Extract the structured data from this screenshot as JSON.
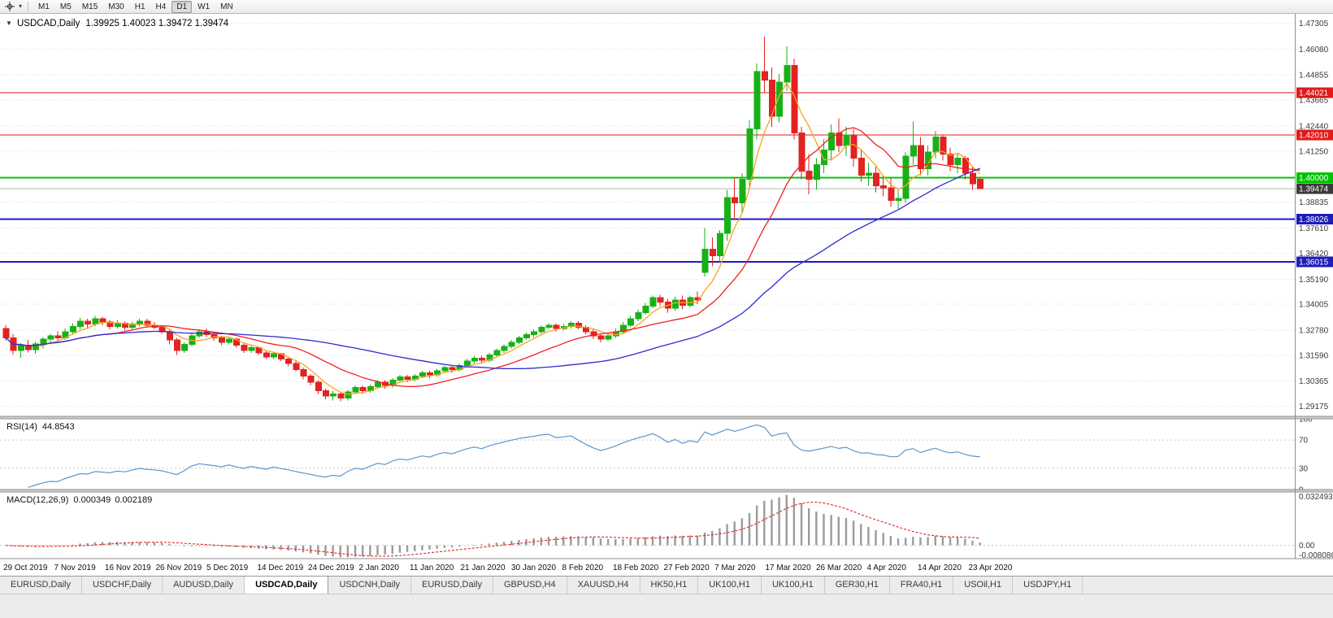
{
  "toolbar": {
    "timeframes": [
      "M1",
      "M5",
      "M15",
      "M30",
      "H1",
      "H4",
      "D1",
      "W1",
      "MN"
    ],
    "active_timeframe": "D1"
  },
  "chart": {
    "collapse_icon": "▼",
    "symbol_title": "USDCAD,Daily",
    "ohlc_text": "1.39925 1.40023 1.39472 1.39474",
    "price_min": 1.287,
    "price_max": 1.4775,
    "price_axis_ticks": [
      "1.47305",
      "1.46080",
      "1.44855",
      "1.43665",
      "1.42440",
      "1.41250",
      "1.38835",
      "1.37610",
      "1.36420",
      "1.35190",
      "1.34005",
      "1.32780",
      "1.31590",
      "1.30365",
      "1.29175"
    ],
    "levels": [
      {
        "label": "1.44021",
        "color": "#e21a1a",
        "width": 1
      },
      {
        "label": "1.42010",
        "color": "#e21a1a",
        "width": 1
      },
      {
        "label": "1.40000",
        "color": "#00c400",
        "width": 2
      },
      {
        "label": "1.38026",
        "color": "#1d1db8",
        "width": 2
      },
      {
        "label": "1.36015",
        "color": "#1d1db8",
        "width": 2
      }
    ],
    "current_price": {
      "label": "1.39474",
      "line_color": "#b4b4b4",
      "tag_bg": "#3a3a3a"
    },
    "colors": {
      "up": "#17b117",
      "down": "#e32222",
      "grid": "#d9d9d9",
      "axis_text": "#3a3a3a"
    },
    "moving_averages": [
      {
        "period": 5,
        "color": "#f7a325"
      },
      {
        "period": 15,
        "color": "#f01f1f"
      },
      {
        "period": 40,
        "color": "#2d2dcf"
      }
    ],
    "candles": [
      [
        1.3285,
        1.3302,
        1.3228,
        1.3242
      ],
      [
        1.3242,
        1.3258,
        1.3162,
        1.3181
      ],
      [
        1.3181,
        1.3216,
        1.3148,
        1.3206
      ],
      [
        1.3206,
        1.3231,
        1.3172,
        1.3186
      ],
      [
        1.3186,
        1.3222,
        1.3166,
        1.3212
      ],
      [
        1.3212,
        1.3246,
        1.3192,
        1.3236
      ],
      [
        1.3236,
        1.3261,
        1.3211,
        1.3251
      ],
      [
        1.3251,
        1.3272,
        1.3222,
        1.3241
      ],
      [
        1.3241,
        1.3286,
        1.3231,
        1.3271
      ],
      [
        1.3271,
        1.3311,
        1.3256,
        1.3296
      ],
      [
        1.3296,
        1.3336,
        1.3281,
        1.3321
      ],
      [
        1.3321,
        1.3331,
        1.3286,
        1.3306
      ],
      [
        1.3306,
        1.3346,
        1.3296,
        1.3331
      ],
      [
        1.3331,
        1.3341,
        1.3301,
        1.3316
      ],
      [
        1.3316,
        1.3326,
        1.3281,
        1.3296
      ],
      [
        1.3296,
        1.3326,
        1.3286,
        1.3311
      ],
      [
        1.3311,
        1.3321,
        1.3276,
        1.3291
      ],
      [
        1.3291,
        1.3316,
        1.3281,
        1.3306
      ],
      [
        1.3306,
        1.3331,
        1.3296,
        1.3321
      ],
      [
        1.3321,
        1.3331,
        1.3291,
        1.3301
      ],
      [
        1.3301,
        1.3316,
        1.3281,
        1.3291
      ],
      [
        1.3291,
        1.3301,
        1.3261,
        1.3271
      ],
      [
        1.3271,
        1.3281,
        1.3211,
        1.3231
      ],
      [
        1.3231,
        1.3241,
        1.3161,
        1.3181
      ],
      [
        1.3181,
        1.3221,
        1.3171,
        1.3211
      ],
      [
        1.3211,
        1.3261,
        1.3201,
        1.3251
      ],
      [
        1.3251,
        1.3281,
        1.3241,
        1.3271
      ],
      [
        1.3271,
        1.3286,
        1.3246,
        1.3256
      ],
      [
        1.3256,
        1.3266,
        1.3226,
        1.3241
      ],
      [
        1.3241,
        1.3251,
        1.3206,
        1.3221
      ],
      [
        1.3221,
        1.3246,
        1.3211,
        1.3236
      ],
      [
        1.3236,
        1.3241,
        1.3196,
        1.3206
      ],
      [
        1.3206,
        1.3216,
        1.3171,
        1.3181
      ],
      [
        1.3181,
        1.3206,
        1.3171,
        1.3196
      ],
      [
        1.3196,
        1.3201,
        1.3161,
        1.3171
      ],
      [
        1.3171,
        1.3181,
        1.3141,
        1.3151
      ],
      [
        1.3151,
        1.3176,
        1.3141,
        1.3166
      ],
      [
        1.3166,
        1.3171,
        1.3131,
        1.3141
      ],
      [
        1.3141,
        1.3151,
        1.3106,
        1.3121
      ],
      [
        1.3121,
        1.3131,
        1.3081,
        1.3091
      ],
      [
        1.3091,
        1.3101,
        1.3046,
        1.3061
      ],
      [
        1.3061,
        1.3071,
        1.3016,
        1.3031
      ],
      [
        1.3031,
        1.3041,
        1.2976,
        1.2991
      ],
      [
        1.2991,
        1.3001,
        1.2951,
        1.2966
      ],
      [
        1.2966,
        1.2991,
        1.2946,
        1.2976
      ],
      [
        1.2976,
        1.2986,
        1.2941,
        1.2956
      ],
      [
        1.2956,
        1.2996,
        1.2946,
        1.2986
      ],
      [
        1.2986,
        1.3016,
        1.2976,
        1.3006
      ],
      [
        1.3006,
        1.3016,
        1.2976,
        1.2991
      ],
      [
        1.2991,
        1.3021,
        1.2981,
        1.3011
      ],
      [
        1.3011,
        1.3041,
        1.3001,
        1.3031
      ],
      [
        1.3031,
        1.3041,
        1.3001,
        1.3016
      ],
      [
        1.3016,
        1.3051,
        1.3006,
        1.3041
      ],
      [
        1.3041,
        1.3066,
        1.3031,
        1.3056
      ],
      [
        1.3056,
        1.3066,
        1.3031,
        1.3046
      ],
      [
        1.3046,
        1.3071,
        1.3036,
        1.3061
      ],
      [
        1.3061,
        1.3086,
        1.3051,
        1.3076
      ],
      [
        1.3076,
        1.3086,
        1.3051,
        1.3066
      ],
      [
        1.3066,
        1.3096,
        1.3056,
        1.3086
      ],
      [
        1.3086,
        1.3111,
        1.3076,
        1.3101
      ],
      [
        1.3101,
        1.3111,
        1.3076,
        1.3091
      ],
      [
        1.3091,
        1.3121,
        1.3081,
        1.3111
      ],
      [
        1.3111,
        1.3141,
        1.3101,
        1.3131
      ],
      [
        1.3131,
        1.3156,
        1.3121,
        1.3146
      ],
      [
        1.3146,
        1.3156,
        1.3121,
        1.3136
      ],
      [
        1.3136,
        1.3171,
        1.3126,
        1.3161
      ],
      [
        1.3161,
        1.3191,
        1.3151,
        1.3181
      ],
      [
        1.3181,
        1.3211,
        1.3171,
        1.3201
      ],
      [
        1.3201,
        1.3231,
        1.3191,
        1.3221
      ],
      [
        1.3221,
        1.3251,
        1.3211,
        1.3241
      ],
      [
        1.3241,
        1.3266,
        1.3231,
        1.3256
      ],
      [
        1.3256,
        1.3281,
        1.3246,
        1.3271
      ],
      [
        1.3271,
        1.3301,
        1.3261,
        1.3291
      ],
      [
        1.3291,
        1.3311,
        1.3281,
        1.3301
      ],
      [
        1.3301,
        1.3311,
        1.3271,
        1.3286
      ],
      [
        1.3286,
        1.3306,
        1.3276,
        1.3296
      ],
      [
        1.3296,
        1.3321,
        1.3286,
        1.3311
      ],
      [
        1.3311,
        1.3321,
        1.3281,
        1.3291
      ],
      [
        1.3291,
        1.3301,
        1.3256,
        1.3271
      ],
      [
        1.3271,
        1.3281,
        1.3236,
        1.3251
      ],
      [
        1.3251,
        1.3261,
        1.3221,
        1.3236
      ],
      [
        1.3236,
        1.3266,
        1.3226,
        1.3251
      ],
      [
        1.3251,
        1.3286,
        1.3241,
        1.3271
      ],
      [
        1.3271,
        1.3316,
        1.3261,
        1.3301
      ],
      [
        1.3301,
        1.3346,
        1.3291,
        1.3331
      ],
      [
        1.3331,
        1.3376,
        1.3321,
        1.3361
      ],
      [
        1.3361,
        1.3406,
        1.3351,
        1.3391
      ],
      [
        1.3391,
        1.3441,
        1.3381,
        1.3431
      ],
      [
        1.3431,
        1.3446,
        1.3391,
        1.3411
      ],
      [
        1.3411,
        1.3426,
        1.3361,
        1.3381
      ],
      [
        1.3381,
        1.3436,
        1.3371,
        1.3421
      ],
      [
        1.3421,
        1.3441,
        1.3376,
        1.3396
      ],
      [
        1.3396,
        1.3441,
        1.3386,
        1.3431
      ],
      [
        1.3431,
        1.3461,
        1.3401,
        1.3421
      ],
      [
        1.3551,
        1.3761,
        1.3531,
        1.3661
      ],
      [
        1.3661,
        1.3716,
        1.3581,
        1.3631
      ],
      [
        1.3631,
        1.3751,
        1.3601,
        1.3736
      ],
      [
        1.3736,
        1.3941,
        1.3701,
        1.3906
      ],
      [
        1.3906,
        1.3996,
        1.3801,
        1.3881
      ],
      [
        1.3881,
        1.4021,
        1.3831,
        1.3991
      ],
      [
        1.3991,
        1.4271,
        1.3951,
        1.4231
      ],
      [
        1.4231,
        1.4541,
        1.4181,
        1.4501
      ],
      [
        1.4501,
        1.4668,
        1.4401,
        1.4461
      ],
      [
        1.4461,
        1.4521,
        1.4241,
        1.4291
      ],
      [
        1.4291,
        1.4491,
        1.4261,
        1.4451
      ],
      [
        1.4451,
        1.4621,
        1.4411,
        1.4531
      ],
      [
        1.4531,
        1.4561,
        1.4181,
        1.4211
      ],
      [
        1.4211,
        1.4241,
        1.3991,
        1.4031
      ],
      [
        1.4031,
        1.4111,
        1.3921,
        1.3991
      ],
      [
        1.3991,
        1.4091,
        1.3941,
        1.4061
      ],
      [
        1.4061,
        1.4181,
        1.4021,
        1.4131
      ],
      [
        1.4131,
        1.4251,
        1.4081,
        1.4211
      ],
      [
        1.4211,
        1.4281,
        1.4121,
        1.4151
      ],
      [
        1.4151,
        1.4241,
        1.4101,
        1.4201
      ],
      [
        1.4201,
        1.4231,
        1.4051,
        1.4091
      ],
      [
        1.4091,
        1.4131,
        1.3981,
        1.4011
      ],
      [
        1.4011,
        1.4071,
        1.3961,
        1.4021
      ],
      [
        1.4021,
        1.4051,
        1.3931,
        1.3961
      ],
      [
        1.3961,
        1.4011,
        1.3911,
        1.3951
      ],
      [
        1.3951,
        1.4001,
        1.3861,
        1.3891
      ],
      [
        1.3891,
        1.3941,
        1.3851,
        1.3901
      ],
      [
        1.3901,
        1.4121,
        1.3881,
        1.4101
      ],
      [
        1.4101,
        1.4266,
        1.4061,
        1.4151
      ],
      [
        1.4151,
        1.4191,
        1.4011,
        1.4041
      ],
      [
        1.4041,
        1.4151,
        1.4011,
        1.4121
      ],
      [
        1.4121,
        1.4221,
        1.4091,
        1.4191
      ],
      [
        1.4191,
        1.4201,
        1.4081,
        1.4111
      ],
      [
        1.4111,
        1.4141,
        1.4031,
        1.4061
      ],
      [
        1.4061,
        1.4111,
        1.4021,
        1.4091
      ],
      [
        1.4091,
        1.4101,
        1.3991,
        1.4021
      ],
      [
        1.4021,
        1.4051,
        1.3941,
        1.3971
      ],
      [
        1.39925,
        1.40023,
        1.39472,
        1.39474
      ]
    ]
  },
  "rsi": {
    "name": "RSI(14)",
    "value": "44.8543",
    "period": 14,
    "color": "#5b97cf",
    "axis_ticks": [
      "100",
      "70",
      "30",
      "0"
    ],
    "guide_levels": [
      70,
      30
    ]
  },
  "macd": {
    "name": "MACD(12,26,9)",
    "value_main": "0.000349",
    "value_signal": "0.002189",
    "fast": 12,
    "slow": 26,
    "signal": 9,
    "hist_color": "#9b9b9b",
    "signal_color": "#e32222",
    "axis_max": "0.032493",
    "axis_zero": "0.00",
    "axis_min": "-0.008086"
  },
  "dates": [
    "29 Oct 2019",
    "7 Nov 2019",
    "16 Nov 2019",
    "26 Nov 2019",
    "5 Dec 2019",
    "14 Dec 2019",
    "24 Dec 2019",
    "2 Jan 2020",
    "11 Jan 2020",
    "21 Jan 2020",
    "30 Jan 2020",
    "8 Feb 2020",
    "18 Feb 2020",
    "27 Feb 2020",
    "7 Mar 2020",
    "17 Mar 2020",
    "26 Mar 2020",
    "4 Apr 2020",
    "14 Apr 2020",
    "23 Apr 2020"
  ],
  "tabs": {
    "items": [
      "EURUSD,Daily",
      "USDCHF,Daily",
      "AUDUSD,Daily",
      "USDCAD,Daily",
      "USDCNH,Daily",
      "EURUSD,Daily",
      "GBPUSD,H4",
      "XAUUSD,H4",
      "HK50,H1",
      "UK100,H1",
      "UK100,H1",
      "GER30,H1",
      "FRA40,H1",
      "USOil,H1",
      "USDJPY,H1"
    ],
    "active_index": 3
  }
}
